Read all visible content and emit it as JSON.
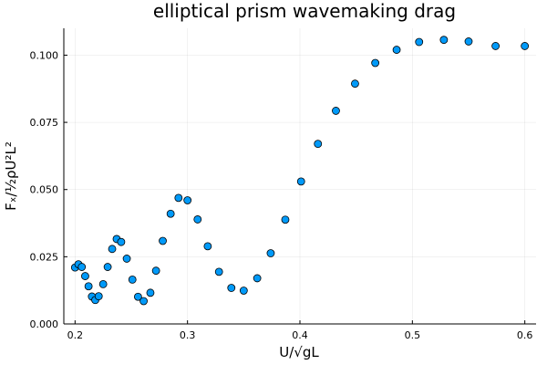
{
  "chart_data": {
    "type": "scatter",
    "title": "elliptical prism wavemaking drag",
    "xlabel": "U/√gL",
    "ylabel": "Fₓ/½ρU²L²",
    "xlim": [
      0.19,
      0.61
    ],
    "ylim": [
      0.0,
      0.11
    ],
    "x_ticks": [
      0.2,
      0.3,
      0.4,
      0.5,
      0.6
    ],
    "x_tick_labels": [
      "0.2",
      "0.3",
      "0.4",
      "0.5",
      "0.6"
    ],
    "y_ticks": [
      0.0,
      0.025,
      0.05,
      0.075,
      0.1
    ],
    "y_tick_labels": [
      "0.000",
      "0.025",
      "0.050",
      "0.075",
      "0.100"
    ],
    "grid": true,
    "legend": "none",
    "marker_color": "#009af9",
    "x": [
      0.2,
      0.203,
      0.206,
      0.209,
      0.212,
      0.215,
      0.218,
      0.221,
      0.225,
      0.229,
      0.233,
      0.237,
      0.241,
      0.246,
      0.251,
      0.256,
      0.261,
      0.267,
      0.272,
      0.278,
      0.285,
      0.292,
      0.3,
      0.309,
      0.318,
      0.328,
      0.339,
      0.35,
      0.362,
      0.374,
      0.387,
      0.401,
      0.416,
      0.432,
      0.449,
      0.467,
      0.486,
      0.506,
      0.528,
      0.55,
      0.574,
      0.6
    ],
    "y": [
      0.021,
      0.0222,
      0.0212,
      0.0178,
      0.014,
      0.0102,
      0.0089,
      0.0103,
      0.0148,
      0.0212,
      0.0279,
      0.0316,
      0.0305,
      0.0243,
      0.0165,
      0.0101,
      0.0085,
      0.0116,
      0.0198,
      0.0309,
      0.041,
      0.0469,
      0.046,
      0.0389,
      0.0289,
      0.0194,
      0.0134,
      0.0124,
      0.017,
      0.0263,
      0.0388,
      0.053,
      0.067,
      0.0793,
      0.0894,
      0.0971,
      0.102,
      0.1049,
      0.1057,
      0.1051,
      0.1034,
      0.1034
    ]
  }
}
